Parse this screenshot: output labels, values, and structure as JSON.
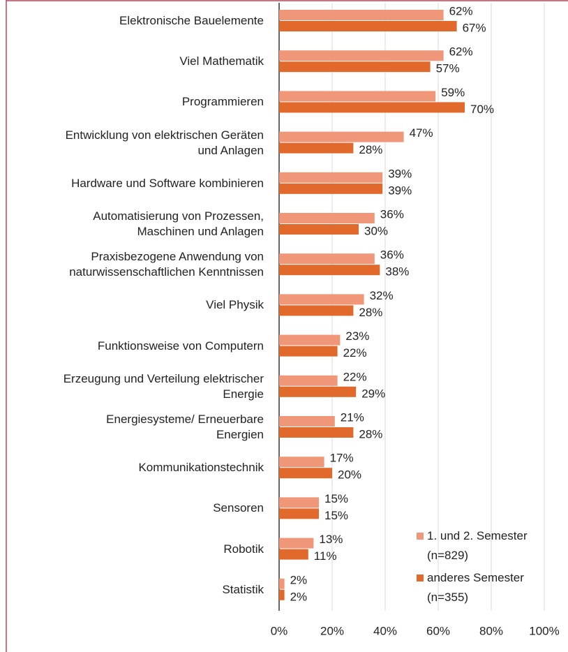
{
  "chart_data": {
    "type": "barh",
    "categories": [
      "Elektronische Bauelemente",
      "Viel Mathematik",
      "Programmieren",
      "Entwicklung von elektrischen Geräten\nund Anlagen",
      "Hardware und Software kombinieren",
      "Automatisierung von Prozessen,\nMaschinen und Anlagen",
      "Praxisbezogene Anwendung von\nnaturwissenschaftlichen Kenntnissen",
      "Viel Physik",
      "Funktionsweise von Computern",
      "Erzeugung und Verteilung elektrischer\nEnergie",
      "Energiesysteme/ Erneuerbare\nEnergien",
      "Kommunikationstechnik",
      "Sensoren",
      "Robotik",
      "Statistik"
    ],
    "series": [
      {
        "name": "1. und 2. Semester\n(n=829)",
        "color": "#f0977a",
        "values": [
          62,
          62,
          59,
          47,
          39,
          36,
          36,
          32,
          23,
          22,
          21,
          17,
          15,
          13,
          2
        ],
        "value_labels": [
          "62%",
          "62%",
          "59%",
          "47%",
          "39%",
          "36%",
          "36%",
          "32%",
          "23%",
          "22%",
          "21%",
          "17%",
          "15%",
          "13%",
          "2%"
        ]
      },
      {
        "name": "anderes Semester\n(n=355)",
        "color": "#e0692b",
        "values": [
          67,
          57,
          70,
          28,
          39,
          30,
          38,
          28,
          22,
          29,
          28,
          20,
          15,
          11,
          2
        ],
        "value_labels": [
          "67%",
          "57%",
          "70%",
          "28%",
          "39%",
          "30%",
          "38%",
          "28%",
          "22%",
          "29%",
          "28%",
          "20%",
          "15%",
          "11%",
          "2%"
        ]
      }
    ],
    "xlim": [
      0,
      100
    ],
    "xticks": [
      {
        "value": 0,
        "label": "0%"
      },
      {
        "value": 20,
        "label": "20%"
      },
      {
        "value": 40,
        "label": "40%"
      },
      {
        "value": 60,
        "label": "60%"
      },
      {
        "value": 80,
        "label": "80%"
      },
      {
        "value": 100,
        "label": "100%"
      }
    ],
    "grid": true,
    "legend": "lower right"
  }
}
